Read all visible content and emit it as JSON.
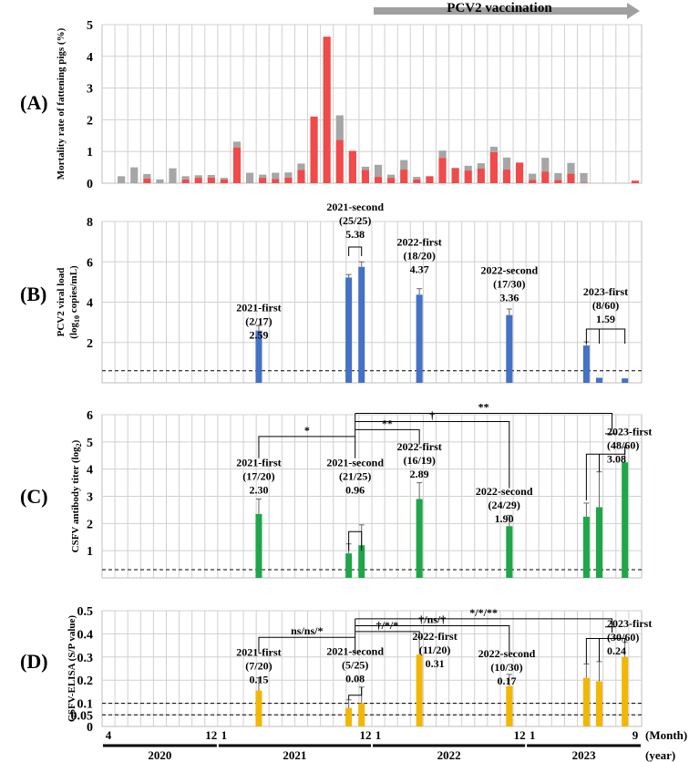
{
  "banner": "PCV2 vaccination",
  "colors": {
    "red": "#f04a4a",
    "gray": "#a6a6a6",
    "blue": "#4472c4",
    "green": "#1fa64a",
    "gold": "#f2b705",
    "arrow": "#a0a0a0"
  },
  "time_axis": {
    "month_ticks": [
      {
        "i": 0,
        "t": "4"
      },
      {
        "i": 8,
        "t": "12"
      },
      {
        "i": 9,
        "t": "1"
      },
      {
        "i": 20,
        "t": "12"
      },
      {
        "i": 21,
        "t": "1"
      },
      {
        "i": 32,
        "t": "12"
      },
      {
        "i": 33,
        "t": "1"
      },
      {
        "i": 41,
        "t": "9"
      }
    ],
    "year_groups": [
      {
        "from": 0,
        "to": 8,
        "t": "2020"
      },
      {
        "from": 9,
        "to": 20,
        "t": "2021"
      },
      {
        "from": 21,
        "to": 32,
        "t": "2022"
      },
      {
        "from": 33,
        "to": 41,
        "t": "2023"
      }
    ],
    "month_label": "(Month)",
    "year_label": "(year)"
  },
  "chart_data": [
    {
      "panel": "(A)",
      "type": "bar",
      "stacked": true,
      "ylabel": "Mortality rate of fattening pigs (%)",
      "ylim": [
        0,
        5
      ],
      "yticks": [
        "0",
        "1",
        "2",
        "3",
        "4",
        "5"
      ],
      "x_months": [
        "2020-04",
        "2020-05",
        "2020-06",
        "2020-07",
        "2020-08",
        "2020-09",
        "2020-10",
        "2020-11",
        "2020-12",
        "2021-01",
        "2021-02",
        "2021-03",
        "2021-04",
        "2021-05",
        "2021-06",
        "2021-07",
        "2021-08",
        "2021-09",
        "2021-10",
        "2021-11",
        "2021-12",
        "2022-01",
        "2022-02",
        "2022-03",
        "2022-04",
        "2022-05",
        "2022-06",
        "2022-07",
        "2022-08",
        "2022-09",
        "2022-10",
        "2022-11",
        "2022-12",
        "2023-01",
        "2023-02",
        "2023-03",
        "2023-04",
        "2023-05",
        "2023-06",
        "2023-07",
        "2023-08",
        "2023-09"
      ],
      "series": [
        {
          "name": "red",
          "values": [
            0,
            0,
            0,
            0.15,
            0,
            0,
            0.12,
            0.17,
            0.18,
            0.12,
            1.13,
            0,
            0.17,
            0.13,
            0.18,
            0.42,
            2.1,
            4.62,
            1.37,
            1.02,
            0.42,
            0.2,
            0.17,
            0.43,
            0.12,
            0.22,
            0.8,
            0.48,
            0.4,
            0.47,
            0.98,
            0.43,
            0.65,
            0.1,
            0.37,
            0.1,
            0.3,
            0.02,
            0,
            0,
            0,
            0.08
          ]
        },
        {
          "name": "gray",
          "values": [
            0,
            0.22,
            0.5,
            0.14,
            0.12,
            0.47,
            0.1,
            0.08,
            0.08,
            0.05,
            0.18,
            0.33,
            0.1,
            0.2,
            0.16,
            0.2,
            0,
            0,
            0.77,
            0,
            0.1,
            0.38,
            0.1,
            0.3,
            0.08,
            0,
            0.23,
            0,
            0.15,
            0.16,
            0.17,
            0.38,
            0,
            0.2,
            0.43,
            0.22,
            0.34,
            0.3,
            0,
            0,
            0,
            0
          ]
        }
      ]
    },
    {
      "panel": "(B)",
      "type": "bar",
      "ylabel_line1": "PCV2 viral load",
      "ylabel_line2": "(log",
      "ylabel_sub": "10",
      "ylabel_line2b": " copies/mL)",
      "ylim": [
        0,
        8
      ],
      "yticks": [
        "2",
        "4",
        "6",
        "8"
      ],
      "threshold": 0.6,
      "bars": [
        {
          "pos": 11.7,
          "value": 2.59,
          "err": 0.25
        },
        {
          "pos": 18.7,
          "value": 5.22,
          "err": 0.15
        },
        {
          "pos": 19.7,
          "value": 5.75,
          "err": 0.25
        },
        {
          "pos": 24.2,
          "value": 4.37,
          "err": 0.3
        },
        {
          "pos": 31.2,
          "value": 3.36,
          "err": 0.3
        },
        {
          "pos": 37.2,
          "value": 1.85,
          "err": 0.18
        },
        {
          "pos": 38.2,
          "value": 0.25,
          "err": 0
        },
        {
          "pos": 40.2,
          "value": 0.22,
          "err": 0
        }
      ],
      "labels": [
        {
          "lines": [
            "2021-first",
            "(2/17)",
            "2.59"
          ],
          "cx": 11.7,
          "y": 3.55
        },
        {
          "lines": [
            "2021-second",
            "(25/25)",
            "5.38"
          ],
          "cx": 19.2,
          "y": 8.55
        },
        {
          "lines": [
            "2022-first",
            "(18/20)",
            "4.37"
          ],
          "cx": 24.2,
          "y": 6.8
        },
        {
          "lines": [
            "2022-second",
            "(17/30)",
            "3.36"
          ],
          "cx": 31.2,
          "y": 5.4
        },
        {
          "lines": [
            "2023-first",
            "(8/60)",
            "1.59"
          ],
          "cx": 38.7,
          "y": 4.35
        }
      ]
    },
    {
      "panel": "(C)",
      "type": "bar",
      "ylabel_line1": "CSFV antibody titer (log",
      "ylabel_sub": "2",
      "ylabel_end": ")",
      "ylim": [
        0,
        6
      ],
      "yticks": [
        "1",
        "2",
        "3",
        "4",
        "5",
        "6"
      ],
      "threshold": 0.3,
      "bars": [
        {
          "pos": 11.7,
          "value": 2.35,
          "err": 0.55
        },
        {
          "pos": 18.7,
          "value": 0.9,
          "err": 0.35
        },
        {
          "pos": 19.7,
          "value": 1.2,
          "err": 0.75
        },
        {
          "pos": 24.2,
          "value": 2.9,
          "err": 0.6
        },
        {
          "pos": 31.2,
          "value": 1.9,
          "err": 0.4
        },
        {
          "pos": 37.2,
          "value": 2.25,
          "err": 0.5
        },
        {
          "pos": 38.2,
          "value": 2.6,
          "err": 1.3
        },
        {
          "pos": 40.2,
          "value": 4.25,
          "err": 0.55
        }
      ],
      "labels": [
        {
          "lines": [
            "2021-first",
            "(17/20)",
            "2.30"
          ],
          "cx": 11.7,
          "y": 4.1
        },
        {
          "lines": [
            "2021-second",
            "(21/25)",
            "0.96"
          ],
          "cx": 19.2,
          "y": 4.1
        },
        {
          "lines": [
            "2022-first",
            "(16/19)",
            "2.89"
          ],
          "cx": 24.2,
          "y": 4.7
        },
        {
          "lines": [
            "2022-second",
            "(24/29)",
            "1.90"
          ],
          "cx": 30.8,
          "y": 3.05
        }
      ],
      "label_right": {
        "lines": [
          "2023-first",
          "(48/60)",
          "3.08"
        ],
        "y": 5.25
      },
      "sig": [
        "*",
        "**",
        "†",
        "**"
      ]
    },
    {
      "panel": "(D)",
      "type": "bar",
      "ylabel": "CSFV-ELISA (S/P value)",
      "ylim": [
        0,
        0.5
      ],
      "yticks": [
        {
          "v": 0,
          "t": "0"
        },
        {
          "v": 0.05,
          "t": "0.05"
        },
        {
          "v": 0.1,
          "t": "0.1"
        },
        {
          "v": 0.2,
          "t": "0.2"
        },
        {
          "v": 0.3,
          "t": "0.3"
        },
        {
          "v": 0.4,
          "t": "0.4"
        },
        {
          "v": 0.5,
          "t": "0.5"
        }
      ],
      "thresholds": [
        0.05,
        0.1
      ],
      "bars": [
        {
          "pos": 11.7,
          "value": 0.155,
          "err": 0.055
        },
        {
          "pos": 18.7,
          "value": 0.08,
          "err": 0.035
        },
        {
          "pos": 19.7,
          "value": 0.1,
          "err": 0.07
        },
        {
          "pos": 24.2,
          "value": 0.31,
          "err": 0.075
        },
        {
          "pos": 31.2,
          "value": 0.175,
          "err": 0.05
        },
        {
          "pos": 37.2,
          "value": 0.21,
          "err": 0.06
        },
        {
          "pos": 38.2,
          "value": 0.195,
          "err": 0.085
        },
        {
          "pos": 40.2,
          "value": 0.3,
          "err": 0.065
        }
      ],
      "labels": [
        {
          "lines": [
            "2021-first",
            "(7/20)",
            "0.15"
          ],
          "cx": 11.7,
          "y": 0.305
        },
        {
          "lines": [
            "2021-second",
            "(5/25)",
            "0.08"
          ],
          "cx": 19.2,
          "y": 0.31
        },
        {
          "lines": [
            "2022-first",
            "(11/20)",
            "0.31"
          ],
          "cx": 25.4,
          "y": 0.375
        },
        {
          "lines": [
            "2022-second",
            "(10/30)",
            "0.17"
          ],
          "cx": 31.0,
          "y": 0.3
        }
      ],
      "label_right": {
        "lines": [
          "2023-first",
          "(30/60)",
          "0.24"
        ],
        "y": 0.43
      },
      "sig": [
        "ns/ns/*",
        "†/*/*",
        "†/ns/†",
        "*/*/**"
      ]
    }
  ]
}
